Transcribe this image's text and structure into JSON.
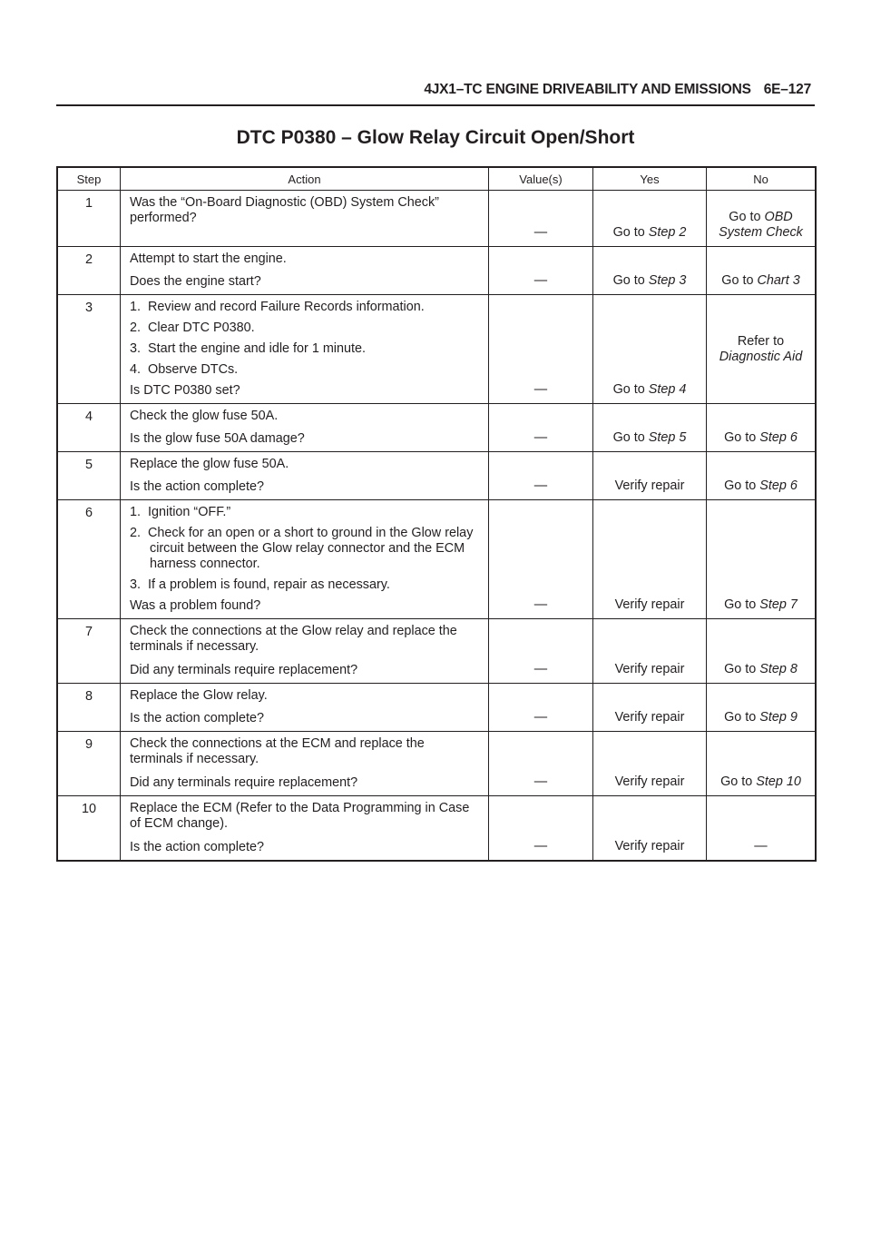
{
  "header": {
    "section": "4JX1–TC ENGINE DRIVEABILITY AND EMISSIONS",
    "page": "6E–127"
  },
  "title": "DTC P0380 – Glow Relay Circuit Open/Short",
  "table": {
    "columns": [
      "Step",
      "Action",
      "Value(s)",
      "Yes",
      "No"
    ],
    "rows": [
      {
        "step": "1",
        "h": 62,
        "action": [
          {
            "t": "Was the “On-Board Diagnostic (OBD) System Check” performed?"
          }
        ],
        "value": "—",
        "yes": [
          {
            "t": "Go to "
          },
          {
            "em": "Step 2"
          }
        ],
        "no": [
          {
            "t": "Go to "
          },
          {
            "em": "OBD System Check"
          }
        ]
      },
      {
        "step": "2",
        "h": 53,
        "action": [
          {
            "t": "Attempt to start the engine."
          },
          {
            "q": "Does the engine start?"
          }
        ],
        "value": "—",
        "yes": [
          {
            "t": "Go to "
          },
          {
            "em": "Step 3"
          }
        ],
        "no": [
          {
            "t": "Go to "
          },
          {
            "em": "Chart 3"
          }
        ]
      },
      {
        "step": "3",
        "h": 117,
        "action": [
          {
            "n": "1.",
            "t": "Review and record Failure Records information."
          },
          {
            "n": "2.",
            "t": "Clear DTC P0380."
          },
          {
            "n": "3.",
            "t": "Start the engine and idle for 1 minute."
          },
          {
            "n": "4.",
            "t": "Observe DTCs."
          },
          {
            "q": "Is DTC P0380 set?"
          }
        ],
        "value": "—",
        "yes": [
          {
            "t": "Go to "
          },
          {
            "em": "Step 4"
          }
        ],
        "no": [
          {
            "t": "Refer to "
          },
          {
            "em": "Diagnostic Aid"
          }
        ],
        "no_middle": true
      },
      {
        "step": "4",
        "h": 53,
        "action": [
          {
            "t": "Check the glow fuse 50A."
          },
          {
            "q": "Is the glow fuse 50A damage?"
          }
        ],
        "value": "—",
        "yes": [
          {
            "t": "Go to "
          },
          {
            "em": "Step 5"
          }
        ],
        "no": [
          {
            "t": "Go to "
          },
          {
            "em": "Step 6"
          }
        ]
      },
      {
        "step": "5",
        "h": 53,
        "action": [
          {
            "t": "Replace the glow fuse 50A."
          },
          {
            "q": "Is the action complete?"
          }
        ],
        "value": "—",
        "yes": [
          {
            "t": "Verify repair"
          }
        ],
        "no": [
          {
            "t": "Go to "
          },
          {
            "em": "Step 6"
          }
        ]
      },
      {
        "step": "6",
        "h": 130,
        "action": [
          {
            "n": "1.",
            "t": "Ignition “OFF.”"
          },
          {
            "n": "2.",
            "t": "Check for an open or a short to ground in the Glow relay circuit between the Glow relay connector and the ECM harness connector."
          },
          {
            "n": "3.",
            "t": "If a problem is found, repair as necessary."
          },
          {
            "q": "Was a problem found?"
          }
        ],
        "value": "—",
        "yes": [
          {
            "t": "Verify repair"
          }
        ],
        "no": [
          {
            "t": "Go to "
          },
          {
            "em": "Step 7"
          }
        ]
      },
      {
        "step": "7",
        "h": 71,
        "action": [
          {
            "t": "Check the connections at the Glow relay and replace the terminals if necessary."
          },
          {
            "q": "Did any terminals require replacement?"
          }
        ],
        "value": "—",
        "yes": [
          {
            "t": "Verify repair"
          }
        ],
        "no": [
          {
            "t": "Go to "
          },
          {
            "em": "Step 8"
          }
        ]
      },
      {
        "step": "8",
        "h": 53,
        "action": [
          {
            "t": "Replace the Glow relay."
          },
          {
            "q": "Is the action complete?"
          }
        ],
        "value": "—",
        "yes": [
          {
            "t": "Verify repair"
          }
        ],
        "no": [
          {
            "t": "Go to "
          },
          {
            "em": "Step 9"
          }
        ]
      },
      {
        "step": "9",
        "h": 71,
        "action": [
          {
            "t": "Check the connections at the ECM and replace the terminals if necessary."
          },
          {
            "q": "Did any terminals require replacement?"
          }
        ],
        "value": "—",
        "yes": [
          {
            "t": "Verify repair"
          }
        ],
        "no": [
          {
            "t": "Go to "
          },
          {
            "em": "Step 10"
          }
        ]
      },
      {
        "step": "10",
        "h": 71,
        "action": [
          {
            "t": "Replace the ECM (Refer to the Data Programming in Case of ECM change)."
          },
          {
            "q": "Is the action complete?"
          }
        ],
        "value": "—",
        "yes": [
          {
            "t": "Verify repair"
          }
        ],
        "no": [
          {
            "t": "—"
          }
        ]
      }
    ]
  }
}
